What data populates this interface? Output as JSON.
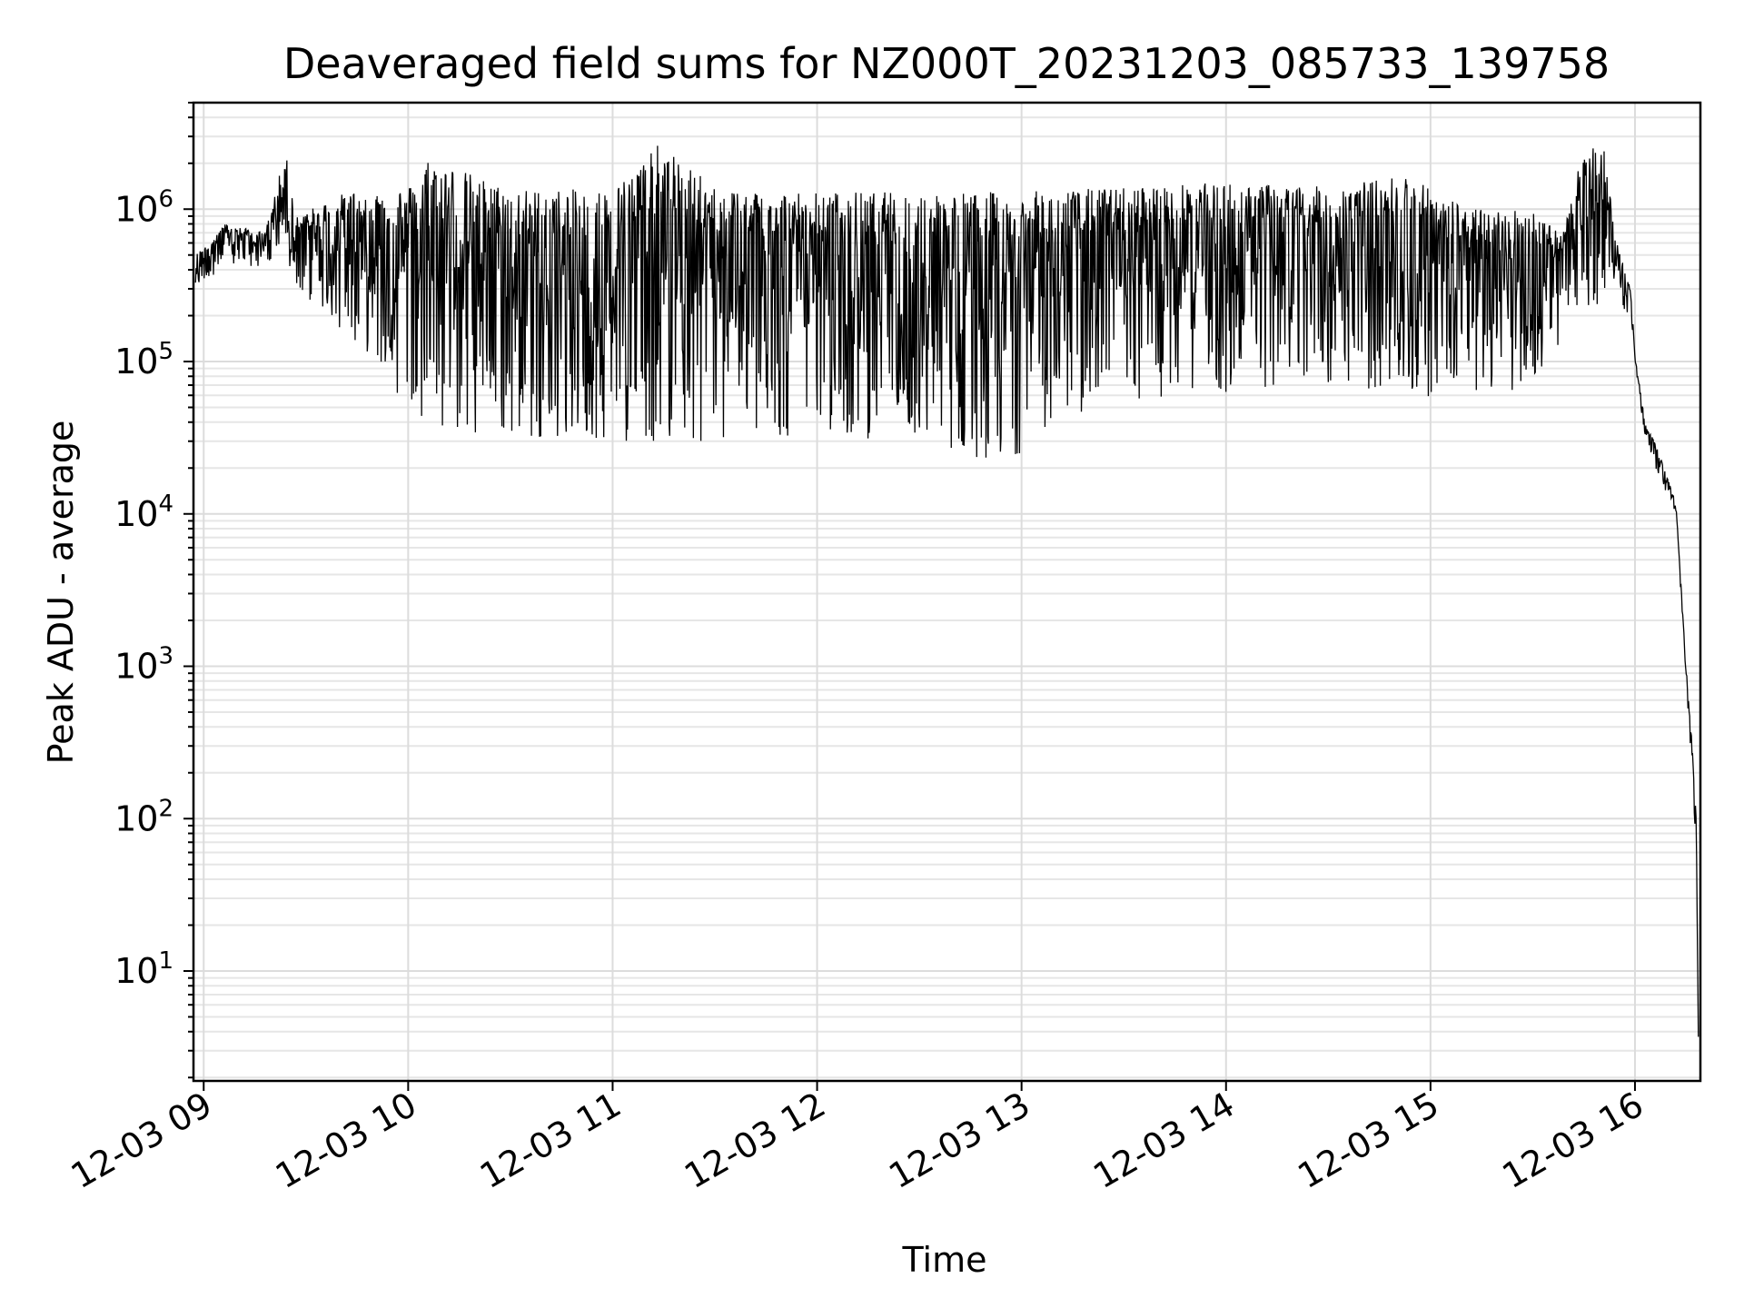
{
  "chart_data": {
    "type": "line",
    "title": "Deaveraged field sums for NZ000T_20231203_085733_139758",
    "xlabel": "Time",
    "ylabel": "Peak ADU - average",
    "yscale": "log",
    "grid": true,
    "xlim": [
      8.95,
      16.32
    ],
    "ylim": [
      1.9,
      5000000
    ],
    "x_ticks": [
      {
        "value": 9,
        "label": "12-03 09"
      },
      {
        "value": 10,
        "label": "12-03 10"
      },
      {
        "value": 11,
        "label": "12-03 11"
      },
      {
        "value": 12,
        "label": "12-03 12"
      },
      {
        "value": 13,
        "label": "12-03 13"
      },
      {
        "value": 14,
        "label": "12-03 14"
      },
      {
        "value": 15,
        "label": "12-03 15"
      },
      {
        "value": 16,
        "label": "12-03 16"
      }
    ],
    "y_ticks": [
      {
        "value": 10,
        "base": "10",
        "exp": "1"
      },
      {
        "value": 100,
        "base": "10",
        "exp": "2"
      },
      {
        "value": 1000,
        "base": "10",
        "exp": "3"
      },
      {
        "value": 10000,
        "base": "10",
        "exp": "4"
      },
      {
        "value": 100000,
        "base": "10",
        "exp": "5"
      },
      {
        "value": 1000000,
        "base": "10",
        "exp": "6"
      }
    ],
    "series": [
      {
        "color": "#000000",
        "upper_envelope": [
          [
            8.96,
            500000
          ],
          [
            9.1,
            800000
          ],
          [
            9.3,
            700000
          ],
          [
            9.4,
            2400000
          ],
          [
            9.45,
            900000
          ],
          [
            9.7,
            1300000
          ],
          [
            10.0,
            1400000
          ],
          [
            10.1,
            2200000
          ],
          [
            10.5,
            1350000
          ],
          [
            11.0,
            1350000
          ],
          [
            11.23,
            2700000
          ],
          [
            11.5,
            1400000
          ],
          [
            12.0,
            1300000
          ],
          [
            12.5,
            1300000
          ],
          [
            13.0,
            1300000
          ],
          [
            13.5,
            1400000
          ],
          [
            14.0,
            1500000
          ],
          [
            14.5,
            1400000
          ],
          [
            14.9,
            1700000
          ],
          [
            15.2,
            1000000
          ],
          [
            15.5,
            1000000
          ],
          [
            15.65,
            700000
          ],
          [
            15.75,
            2600000
          ],
          [
            15.85,
            2500000
          ],
          [
            15.9,
            700000
          ],
          [
            15.98,
            300000
          ],
          [
            16.0,
            110000
          ],
          [
            16.05,
            40000
          ],
          [
            16.12,
            25000
          ],
          [
            16.2,
            12000
          ],
          [
            16.25,
            1000
          ],
          [
            16.28,
            300
          ],
          [
            16.3,
            100
          ],
          [
            16.31,
            3.7
          ]
        ],
        "lower_envelope": [
          [
            8.96,
            300000
          ],
          [
            9.1,
            420000
          ],
          [
            9.4,
            420000
          ],
          [
            9.5,
            250000
          ],
          [
            9.7,
            150000
          ],
          [
            9.85,
            100000
          ],
          [
            9.95,
            60000
          ],
          [
            10.1,
            40000
          ],
          [
            10.3,
            30000
          ],
          [
            10.6,
            32000
          ],
          [
            11.0,
            30000
          ],
          [
            11.5,
            28000
          ],
          [
            12.0,
            32000
          ],
          [
            12.5,
            30000
          ],
          [
            12.85,
            22000
          ],
          [
            13.0,
            25000
          ],
          [
            13.2,
            40000
          ],
          [
            13.5,
            45000
          ],
          [
            13.8,
            60000
          ],
          [
            14.0,
            60000
          ],
          [
            14.5,
            70000
          ],
          [
            14.9,
            60000
          ],
          [
            15.2,
            55000
          ],
          [
            15.5,
            70000
          ],
          [
            15.7,
            180000
          ],
          [
            15.9,
            250000
          ],
          [
            15.98,
            200000
          ],
          [
            16.0,
            100000
          ],
          [
            16.05,
            30000
          ],
          [
            16.12,
            17000
          ],
          [
            16.2,
            10000
          ],
          [
            16.25,
            800
          ],
          [
            16.28,
            200
          ],
          [
            16.3,
            60
          ],
          [
            16.31,
            3.7
          ]
        ]
      }
    ]
  }
}
